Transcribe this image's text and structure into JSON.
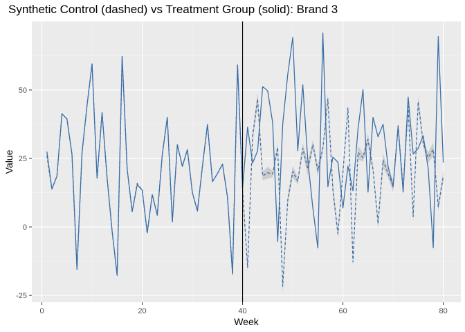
{
  "chart_data": {
    "type": "line",
    "title": "Synthetic Control (dashed) vs Treatment Group (solid): Brand 3",
    "xlabel": "Week",
    "ylabel": "Value",
    "xlim": [
      -2,
      83.5
    ],
    "ylim": [
      -27.5,
      75
    ],
    "x_ticks": [
      0,
      20,
      40,
      60,
      80
    ],
    "y_ticks": [
      -25,
      0,
      25,
      50
    ],
    "grid": true,
    "legend": "none",
    "intervention_week": 40,
    "colors": {
      "panel": "#ebebeb",
      "grid_major": "#ffffff",
      "grid_minor": "#f5f5f5",
      "line": "#3c6fa8",
      "ribbon": "#c7c7c7",
      "vline": "#000000"
    },
    "series": [
      {
        "style": "solid",
        "x": [
          1,
          2,
          3,
          4,
          5,
          6,
          7,
          8,
          9,
          10,
          11,
          12,
          13,
          14,
          15,
          16,
          17,
          18,
          19,
          20,
          21,
          22,
          23,
          24,
          25,
          26,
          27,
          28,
          29,
          30,
          31,
          32,
          33,
          34,
          35,
          36,
          37,
          38,
          39,
          40,
          41,
          42,
          43,
          44,
          45,
          46,
          47,
          48,
          49,
          50,
          51,
          52,
          53,
          54,
          55,
          56,
          57,
          58,
          59,
          60,
          61,
          62,
          63,
          64,
          65,
          66,
          67,
          68,
          69,
          70,
          71,
          72,
          73,
          74,
          75,
          76,
          77,
          78,
          79,
          80
        ],
        "values": [
          27.5,
          13.8,
          18.5,
          41.3,
          39.4,
          26.5,
          -15.5,
          27,
          44.3,
          59.5,
          17.8,
          41.7,
          17.9,
          -1.5,
          -17.7,
          62.2,
          21.1,
          5.6,
          15.4,
          13.4,
          -2.2,
          11.8,
          4.3,
          26.4,
          40,
          1.9,
          30,
          22.1,
          28.2,
          12.5,
          5.8,
          22.1,
          37.4,
          16.5,
          19.5,
          22.9,
          10.8,
          -17.2,
          59.1,
          14.1,
          36.4,
          23.3,
          27.8,
          51.2,
          49.7,
          38,
          -5.4,
          37.5,
          55.6,
          69.2,
          27.8,
          51.9,
          24.3,
          7,
          -7.7,
          70.8,
          14.7,
          25.5,
          23.6,
          6.9,
          22.2,
          13.2,
          35.6,
          50.1,
          12.7,
          40,
          32.9,
          37.5,
          22.1,
          14.6,
          36.7,
          12.7,
          47.4,
          26.6,
          28.7,
          33.3,
          21.2,
          -7.6,
          69.5,
          23.5
        ]
      },
      {
        "style": "dashed",
        "x": [
          1,
          2,
          3,
          4,
          5,
          6,
          7,
          8,
          9,
          10,
          11,
          12,
          13,
          14,
          15,
          16,
          17,
          18,
          19,
          20,
          21,
          22,
          23,
          24,
          25,
          26,
          27,
          28,
          29,
          30,
          31,
          32,
          33,
          34,
          35,
          36,
          37,
          38,
          39,
          40,
          41,
          42,
          43,
          44,
          45,
          46,
          47,
          48,
          49,
          50,
          51,
          52,
          53,
          54,
          55,
          56,
          57,
          58,
          59,
          60,
          61,
          62,
          63,
          64,
          65,
          66,
          67,
          68,
          69,
          70,
          71,
          72,
          73,
          74,
          75,
          76,
          77,
          78,
          79,
          80
        ],
        "values": [
          26,
          13.8,
          18.5,
          41.3,
          39.4,
          26.5,
          -15.5,
          27,
          44.3,
          59.5,
          17.8,
          41.7,
          17.9,
          -1.5,
          -17.7,
          62.2,
          21.1,
          5.6,
          15.9,
          13.4,
          -2.2,
          11.8,
          4.3,
          26.4,
          40,
          1.9,
          30,
          22.1,
          28.2,
          12.5,
          5.8,
          22.1,
          37.4,
          16.5,
          19.5,
          22.9,
          10.8,
          -17.2,
          59.1,
          13.6,
          -14.8,
          33,
          46.7,
          18.6,
          19.8,
          19.3,
          29,
          -21.7,
          9.8,
          20.2,
          16.7,
          28.7,
          21.1,
          30.1,
          20.5,
          28.6,
          46.7,
          13.5,
          -2.5,
          20,
          43.4,
          -12.8,
          27.2,
          25.3,
          31.9,
          20.9,
          1.1,
          24.3,
          19.5,
          14.9,
          36.9,
          14,
          44,
          3.7,
          45.7,
          30.4,
          25.3,
          28.3,
          7.4,
          18.5
        ]
      }
    ]
  }
}
